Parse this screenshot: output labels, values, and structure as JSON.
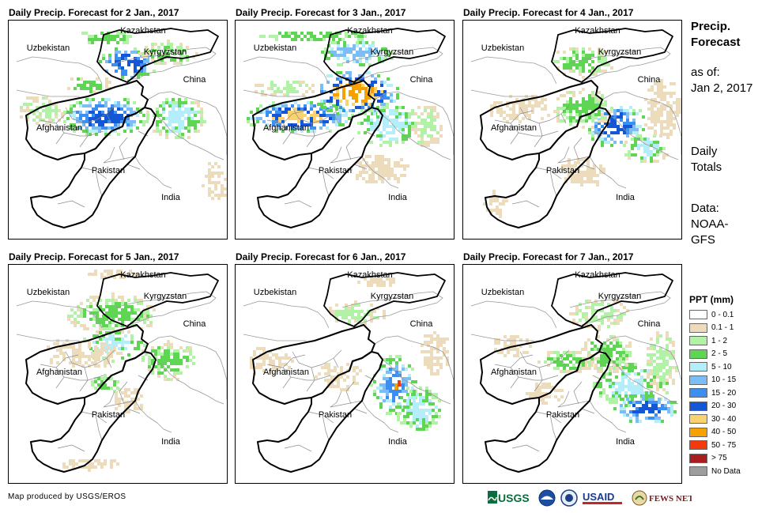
{
  "panels": [
    {
      "title": "Daily Precip. Forecast for 2 Jan., 2017",
      "scenario": "north"
    },
    {
      "title": "Daily Precip. Forecast for 3 Jan., 2017",
      "scenario": "heavy"
    },
    {
      "title": "Daily Precip. Forecast for 4 Jan., 2017",
      "scenario": "east"
    },
    {
      "title": "Daily Precip. Forecast for 5 Jan., 2017",
      "scenario": "light"
    },
    {
      "title": "Daily Precip. Forecast for 6 Jan., 2017",
      "scenario": "kashmir"
    },
    {
      "title": "Daily Precip. Forecast for 7 Jan., 2017",
      "scenario": "himalaya"
    }
  ],
  "country_labels": {
    "kazakhstan": "Kazakhstan",
    "uzbekistan": "Uzbekistan",
    "kyrgyzstan": "Kyrgyzstan",
    "china": "China",
    "afghanistan": "Afghanistan",
    "pakistan": "Pakistan",
    "india": "India"
  },
  "side_info": {
    "heading_line1": "Precip.",
    "heading_line2": "Forecast",
    "asof_label": "as of:",
    "asof_date": "Jan 2, 2017",
    "totals_line1": "Daily",
    "totals_line2": "Totals",
    "data_label": "Data:",
    "data_source_line1": "NOAA-",
    "data_source_line2": "GFS"
  },
  "legend": {
    "title": "PPT (mm)",
    "items": [
      {
        "label": "0 - 0.1",
        "color": "#ffffff"
      },
      {
        "label": "0.1 - 1",
        "color": "#ecdcbc"
      },
      {
        "label": "1 - 2",
        "color": "#b2f2a6"
      },
      {
        "label": "2 - 5",
        "color": "#5ed654"
      },
      {
        "label": "5 - 10",
        "color": "#b4eefa"
      },
      {
        "label": "10 - 15",
        "color": "#7dbdf5"
      },
      {
        "label": "15 - 20",
        "color": "#3b8ff0"
      },
      {
        "label": "20 - 30",
        "color": "#1457d6"
      },
      {
        "label": "30 - 40",
        "color": "#fad36e"
      },
      {
        "label": "40 - 50",
        "color": "#f7a100"
      },
      {
        "label": "50 - 75",
        "color": "#f23a0a"
      },
      {
        "label": "> 75",
        "color": "#a81e1e"
      },
      {
        "label": "No Data",
        "color": "#9d9d9d"
      }
    ]
  },
  "credit": "Map produced by USGS/EROS",
  "logos": {
    "usgs": "USGS",
    "usaid": "USAID",
    "fewsnet": "FEWS NET"
  }
}
